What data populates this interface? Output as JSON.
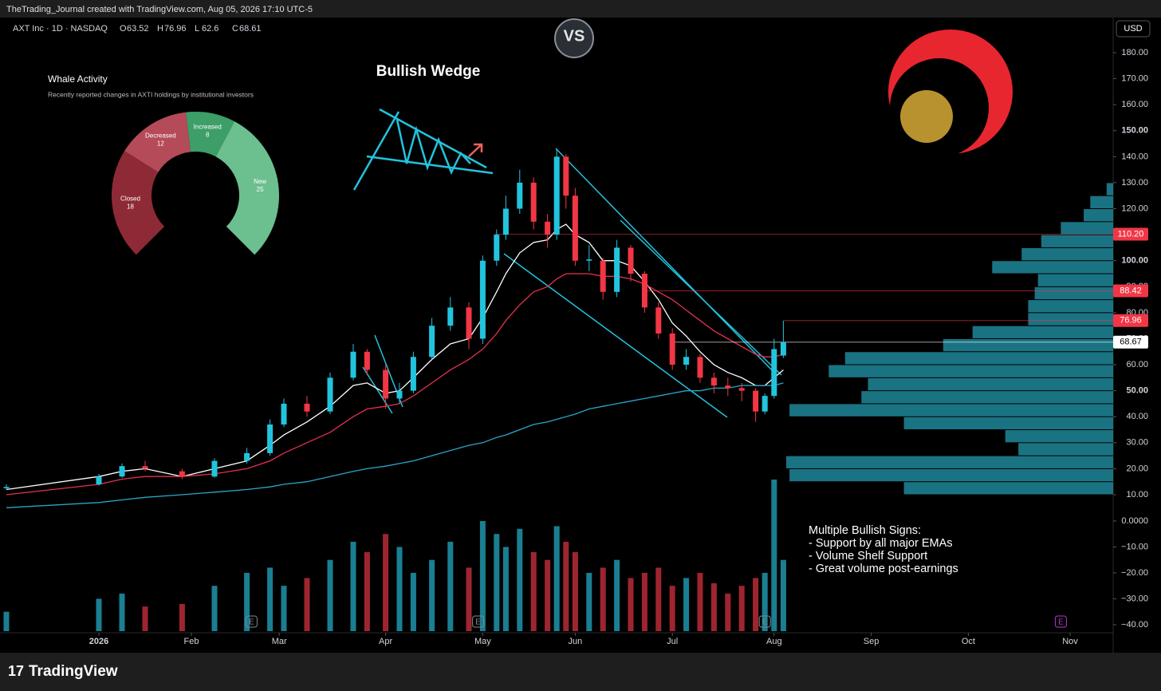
{
  "header": {
    "credit": "TheTrading_Journal created with TradingView.com, Aug 05, 2026 17:10 UTC-5",
    "currency": "USD",
    "footer_brand": "TradingView"
  },
  "chart_data": {
    "type": "candlestick",
    "symbol": "AXT Inc · 1D · NASDAQ",
    "ohlc_labels": [
      "O",
      "H",
      "L",
      "C"
    ],
    "title": "Bullish Wedge",
    "logo": "VS",
    "x": [
      0,
      20,
      25,
      30,
      38,
      45,
      52,
      57,
      60,
      65,
      70,
      75,
      78,
      82,
      85,
      88,
      92,
      96,
      100,
      103,
      106,
      108,
      111,
      114,
      117,
      119,
      121,
      123,
      126,
      129,
      132,
      135,
      138,
      141,
      144,
      147,
      150,
      153,
      156,
      159,
      162,
      164,
      166,
      168
    ],
    "candles": [
      [
        12.5,
        14,
        12,
        13
      ],
      [
        14,
        18,
        13.5,
        17
      ],
      [
        17,
        22,
        16.5,
        21
      ],
      [
        21,
        23,
        19,
        20
      ],
      [
        19,
        20,
        16,
        17
      ],
      [
        17,
        24,
        16.5,
        23
      ],
      [
        23,
        28,
        22,
        26
      ],
      [
        26,
        39,
        25,
        37
      ],
      [
        37,
        47,
        36,
        45
      ],
      [
        45,
        48,
        40,
        42
      ],
      [
        42,
        57,
        41,
        55
      ],
      [
        55,
        68,
        54,
        65
      ],
      [
        65,
        66,
        56,
        58
      ],
      [
        58,
        60,
        43,
        47
      ],
      [
        47,
        53,
        45,
        50
      ],
      [
        50,
        65,
        49,
        63
      ],
      [
        63,
        78,
        62,
        75
      ],
      [
        75,
        86,
        73,
        82
      ],
      [
        82,
        84,
        66,
        70
      ],
      [
        70,
        102,
        68,
        100
      ],
      [
        100,
        112,
        98,
        110
      ],
      [
        110,
        125,
        108,
        120
      ],
      [
        120,
        135,
        118,
        130
      ],
      [
        130,
        132,
        112,
        115
      ],
      [
        115,
        118,
        105,
        110
      ],
      [
        110,
        143,
        108,
        140
      ],
      [
        140,
        141,
        120,
        125
      ],
      [
        125,
        128,
        98,
        100
      ],
      [
        100,
        106,
        96,
        100.5
      ],
      [
        100,
        101,
        85,
        88
      ],
      [
        88,
        108,
        86,
        105
      ],
      [
        105,
        106,
        92,
        95
      ],
      [
        95,
        96,
        80,
        82
      ],
      [
        82,
        84,
        70,
        72
      ],
      [
        72,
        74,
        58,
        60
      ],
      [
        60,
        66,
        58,
        63
      ],
      [
        63,
        64,
        53,
        55
      ],
      [
        55,
        57,
        49,
        52
      ],
      [
        52,
        55,
        48,
        51
      ],
      [
        51,
        53,
        46,
        50
      ],
      [
        50,
        51,
        38,
        42
      ],
      [
        42,
        49,
        41,
        48
      ],
      [
        48,
        70,
        47,
        66
      ],
      [
        63.52,
        76.96,
        62.6,
        68.61
      ]
    ],
    "up_color": "#22c4dd",
    "down_color": "#f23645",
    "volume": [
      -35,
      -30,
      -28,
      -33,
      -32,
      -25,
      -20,
      -18,
      -25,
      -22,
      -15,
      -8,
      -12,
      -5,
      -10,
      -20,
      -15,
      -8,
      -18,
      0,
      -5,
      -10,
      -3,
      -12,
      -15,
      -2,
      -8,
      -12,
      -20,
      -18,
      -15,
      -22,
      -20,
      -18,
      -25,
      -22,
      -20,
      -24,
      -28,
      -25,
      -22,
      -20,
      16,
      -15
    ],
    "volume_up_color": "#1a7f92",
    "volume_down_color": "#9e2530",
    "ema": [
      {
        "color": "#ffffff",
        "values": [
          12,
          17,
          19,
          20,
          17,
          20,
          23,
          29,
          33,
          38,
          44,
          52,
          53,
          49,
          50,
          55,
          62,
          68,
          70,
          78,
          88,
          95,
          103,
          107,
          108,
          112,
          114,
          110,
          107,
          100,
          100,
          98,
          92,
          85,
          76,
          71,
          65,
          60,
          57,
          55,
          52,
          52,
          55,
          58
        ]
      },
      {
        "color": "#e5304f",
        "values": [
          10,
          14,
          16,
          17,
          17,
          18,
          20,
          23,
          26,
          30,
          34,
          40,
          43,
          44,
          45,
          48,
          53,
          58,
          62,
          66,
          72,
          77,
          83,
          88,
          90,
          93,
          95,
          95,
          95,
          94,
          94,
          93,
          91,
          88,
          85,
          81,
          77,
          73,
          70,
          67,
          64,
          63,
          63,
          64
        ]
      },
      {
        "color": "#2aa6c9",
        "values": [
          5,
          7,
          8,
          9,
          10,
          11,
          12,
          13,
          14,
          15,
          17,
          19,
          20,
          21,
          22,
          23,
          25,
          27,
          29,
          30,
          32,
          33,
          35,
          37,
          38,
          39,
          40,
          41,
          43,
          44,
          45,
          46,
          47,
          48,
          49,
          50,
          50,
          51,
          51,
          52,
          52,
          52,
          52,
          53
        ]
      }
    ],
    "xlim": [
      0,
      240
    ],
    "xticks": [
      {
        "value": 20,
        "label": "2026"
      },
      {
        "value": 40,
        "label": "Feb"
      },
      {
        "value": 59,
        "label": "Mar"
      },
      {
        "value": 82,
        "label": "Apr"
      },
      {
        "value": 103,
        "label": "May"
      },
      {
        "value": 123,
        "label": "Jun"
      },
      {
        "value": 144,
        "label": "Jul"
      },
      {
        "value": 166,
        "label": "Aug"
      },
      {
        "value": 187,
        "label": "Sep"
      },
      {
        "value": 208,
        "label": "Oct"
      },
      {
        "value": 230,
        "label": "Nov"
      }
    ],
    "ylim": [
      0,
      190
    ],
    "yticks": [
      {
        "value": 10,
        "label": "10.00"
      },
      {
        "value": 20,
        "label": "20.00"
      },
      {
        "value": 30,
        "label": "30.00"
      },
      {
        "value": 40,
        "label": "40.00"
      },
      {
        "value": 50,
        "label": "50.00"
      },
      {
        "value": 60,
        "label": "60.00"
      },
      {
        "value": 70,
        "label": "70.00"
      },
      {
        "value": 80,
        "label": "80.00"
      },
      {
        "value": 90,
        "label": "90.00"
      },
      {
        "value": 100,
        "label": "100.00"
      },
      {
        "value": 110,
        "label": "110.00"
      },
      {
        "value": 120,
        "label": "120.00"
      },
      {
        "value": 130,
        "label": "130.00"
      },
      {
        "value": 140,
        "label": "140.00"
      },
      {
        "value": 150,
        "label": "150.00"
      },
      {
        "value": 160,
        "label": "160.00"
      },
      {
        "value": 170,
        "label": "170.00"
      },
      {
        "value": 180,
        "label": "180.00"
      }
    ],
    "y2lim": [
      -42.5,
      16.5
    ],
    "y2ticks": [
      {
        "value": 0,
        "label": "0.0000"
      },
      {
        "value": -10,
        "label": "−10.00"
      },
      {
        "value": -20,
        "label": "−20.00"
      },
      {
        "value": -30,
        "label": "−30.00"
      },
      {
        "value": -40,
        "label": "−40.00"
      }
    ],
    "price_lines": [
      {
        "value": 110.2,
        "label": "110.20",
        "color": "#f23645"
      },
      {
        "value": 88.42,
        "color": "#f23645"
      },
      {
        "value": 76.96,
        "color": "#f23645"
      },
      {
        "value": 68.67,
        "color": "#ffffff"
      }
    ],
    "volume_profile": {
      "bins": [
        10,
        15,
        20,
        25,
        30,
        35,
        40,
        45,
        50,
        55,
        60,
        65,
        70,
        75,
        80,
        85,
        90,
        95,
        100,
        105,
        110,
        115,
        120,
        125,
        130
      ],
      "values": [
        64,
        99,
        100,
        29,
        33,
        64,
        99,
        77,
        75,
        87,
        82,
        52,
        43,
        26,
        26,
        24,
        23,
        37,
        28,
        22,
        16,
        9,
        7,
        2
      ],
      "color": "#1d7f91"
    },
    "earnings": {
      "label": "E",
      "x": [
        53,
        102,
        164,
        228
      ]
    },
    "annotation": [
      "Multiple Bullish Signs:",
      "- Support by all major EMAs",
      "- Volume Shelf Support",
      "- Great volume post-earnings"
    ]
  },
  "whale_widget": {
    "title": "Whale Activity",
    "subtitle": "Recently reported changes in AXTI holdings by institutional investors",
    "segments": [
      {
        "name": "Closed",
        "value": 18,
        "color": "#8e2a35"
      },
      {
        "name": "Decreased",
        "value": 12,
        "color": "#b54a58"
      },
      {
        "name": "Increased",
        "value": 8,
        "color": "#3d9e68"
      },
      {
        "name": "New",
        "value": 25,
        "color": "#6cbf8e"
      }
    ]
  }
}
